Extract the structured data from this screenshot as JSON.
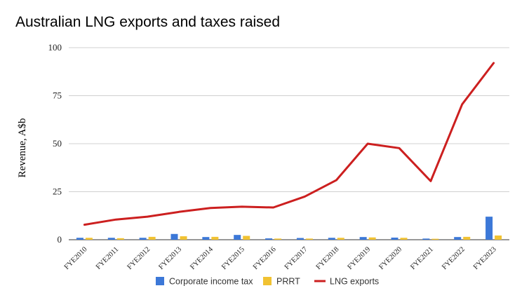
{
  "chart_data": {
    "type": "bar",
    "title": "Australian LNG exports and taxes raised",
    "xlabel": "",
    "ylabel": "Revenue, A$b",
    "ylim": [
      0,
      100
    ],
    "yticks": [
      0,
      25,
      50,
      75,
      100
    ],
    "grid": true,
    "legend_position": "bottom",
    "categories": [
      "FYE2010",
      "FYE2011",
      "FYE2012",
      "FYE2013",
      "FYE2014",
      "FYE2015",
      "FYE2016",
      "FYE2017",
      "FYE2018",
      "FYE2019",
      "FYE2020",
      "FYE2021",
      "FYE2022",
      "FYE2023"
    ],
    "series": [
      {
        "name": "Corporate income tax",
        "type": "bar",
        "color": "#3c78d8",
        "values": [
          1.0,
          1.0,
          1.0,
          3.0,
          1.4,
          2.5,
          0.7,
          0.9,
          1.0,
          1.4,
          1.1,
          0.6,
          1.4,
          12.0
        ]
      },
      {
        "name": "PRRT",
        "type": "bar",
        "color": "#f1c232",
        "values": [
          1.0,
          0.8,
          1.5,
          1.8,
          1.5,
          2.0,
          0.6,
          0.6,
          1.0,
          1.2,
          1.0,
          0.5,
          1.5,
          2.2
        ]
      },
      {
        "name": "LNG exports",
        "type": "line",
        "color": "#cc1f1f",
        "values": [
          7.8,
          10.5,
          12.0,
          14.5,
          16.5,
          17.2,
          16.8,
          22.5,
          31.0,
          50.0,
          47.7,
          30.5,
          70.5,
          92.0
        ]
      }
    ]
  }
}
